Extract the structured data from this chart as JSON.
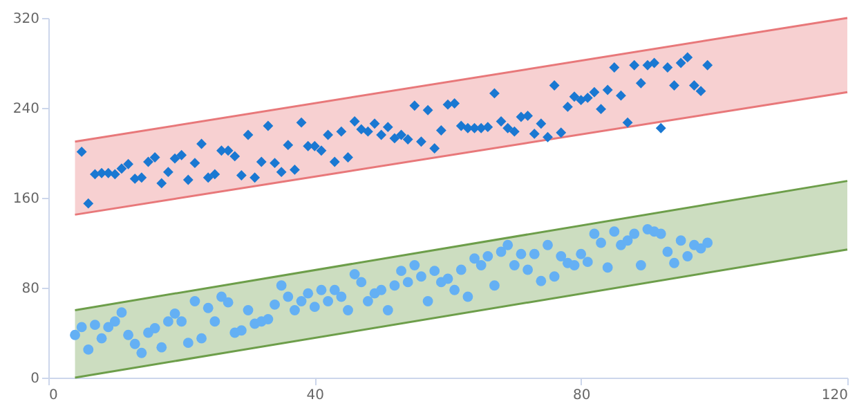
{
  "chart_data": {
    "type": "scatter",
    "xlim": [
      0,
      120
    ],
    "xticks": [
      0,
      40,
      80,
      120
    ],
    "ylim": [
      0,
      320
    ],
    "yticks": [
      0,
      80,
      160,
      240,
      320
    ],
    "grid": false,
    "series": [
      {
        "type": "line",
        "color": "#e8787a",
        "x": [
          4,
          120
        ],
        "values": [
          210,
          320
        ],
        "lower": [
          145,
          254
        ],
        "upper": [
          210,
          320
        ]
      },
      {
        "type": "line",
        "color": "#e8787a",
        "x": [
          4,
          120
        ],
        "values": [
          145,
          254
        ]
      },
      {
        "type": "line",
        "color": "#6d9e4a",
        "x": [
          4,
          120
        ],
        "values": [
          60,
          175
        ],
        "lower": [
          0,
          114
        ],
        "upper": [
          60,
          175
        ]
      },
      {
        "type": "line",
        "color": "#6d9e4a",
        "x": [
          4,
          120
        ],
        "values": [
          0,
          114
        ]
      },
      {
        "type": "scatter",
        "marker": "diamond",
        "color": "#1a78d2",
        "x": [
          5,
          6,
          7,
          8,
          9,
          10,
          11,
          12,
          13,
          14,
          15,
          16,
          17,
          18,
          19,
          20,
          21,
          22,
          23,
          24,
          25,
          26,
          27,
          28,
          29,
          30,
          31,
          32,
          33,
          34,
          35,
          36,
          37,
          38,
          39,
          40,
          41,
          42,
          43,
          44,
          45,
          46,
          47,
          48,
          49,
          50,
          51,
          52,
          53,
          54,
          55,
          56,
          57,
          58,
          59,
          60,
          61,
          62,
          63,
          64,
          65,
          66,
          67,
          68,
          69,
          70,
          71,
          72,
          73,
          74,
          75,
          76,
          77,
          78,
          79,
          80,
          81,
          82,
          83,
          84,
          85,
          86,
          87,
          88,
          89,
          90,
          91,
          92,
          93,
          94,
          95,
          96,
          97,
          98,
          99
        ],
        "values": [
          201,
          155,
          181,
          182,
          182,
          181,
          186,
          190,
          177,
          178,
          192,
          196,
          173,
          183,
          195,
          198,
          176,
          191,
          208,
          178,
          181,
          202,
          202,
          197,
          180,
          216,
          178,
          192,
          224,
          191,
          183,
          207,
          185,
          227,
          206,
          206,
          202,
          216,
          192,
          219,
          196,
          228,
          221,
          219,
          226,
          216,
          223,
          213,
          216,
          212,
          242,
          210,
          238,
          204,
          220,
          243,
          244,
          224,
          222,
          222,
          222,
          223,
          253,
          228,
          222,
          219,
          232,
          233,
          217,
          226,
          214,
          260,
          218,
          241,
          250,
          247,
          249,
          254,
          239,
          256,
          276,
          251,
          227,
          278,
          262,
          278,
          280,
          222,
          276,
          260,
          280,
          285,
          260,
          255,
          278
        ]
      },
      {
        "type": "scatter",
        "marker": "circle",
        "color": "#64b0f4",
        "x": [
          4,
          5,
          6,
          7,
          8,
          9,
          10,
          11,
          12,
          13,
          14,
          15,
          16,
          17,
          18,
          19,
          20,
          21,
          22,
          23,
          24,
          25,
          26,
          27,
          28,
          29,
          30,
          31,
          32,
          33,
          34,
          35,
          36,
          37,
          38,
          39,
          40,
          41,
          42,
          43,
          44,
          45,
          46,
          47,
          48,
          49,
          50,
          51,
          52,
          53,
          54,
          55,
          56,
          57,
          58,
          59,
          60,
          61,
          62,
          63,
          64,
          65,
          66,
          67,
          68,
          69,
          70,
          71,
          72,
          73,
          74,
          75,
          76,
          77,
          78,
          79,
          80,
          81,
          82,
          83,
          84,
          85,
          86,
          87,
          88,
          89,
          90,
          91,
          92,
          93,
          94,
          95,
          96,
          97,
          98,
          99
        ],
        "values": [
          38,
          45,
          25,
          47,
          35,
          45,
          50,
          58,
          38,
          30,
          22,
          40,
          44,
          27,
          50,
          57,
          50,
          31,
          68,
          35,
          62,
          50,
          72,
          67,
          40,
          42,
          60,
          48,
          50,
          52,
          65,
          82,
          72,
          60,
          68,
          75,
          63,
          78,
          68,
          78,
          72,
          60,
          92,
          85,
          68,
          75,
          78,
          60,
          82,
          95,
          85,
          100,
          90,
          68,
          95,
          85,
          88,
          78,
          96,
          72,
          106,
          100,
          108,
          82,
          112,
          118,
          100,
          110,
          96,
          110,
          86,
          118,
          90,
          108,
          102,
          100,
          110,
          103,
          128,
          120,
          98,
          130,
          118,
          122,
          128,
          100,
          132,
          130,
          128,
          112,
          102,
          122,
          108,
          118,
          115,
          120
        ]
      }
    ]
  }
}
